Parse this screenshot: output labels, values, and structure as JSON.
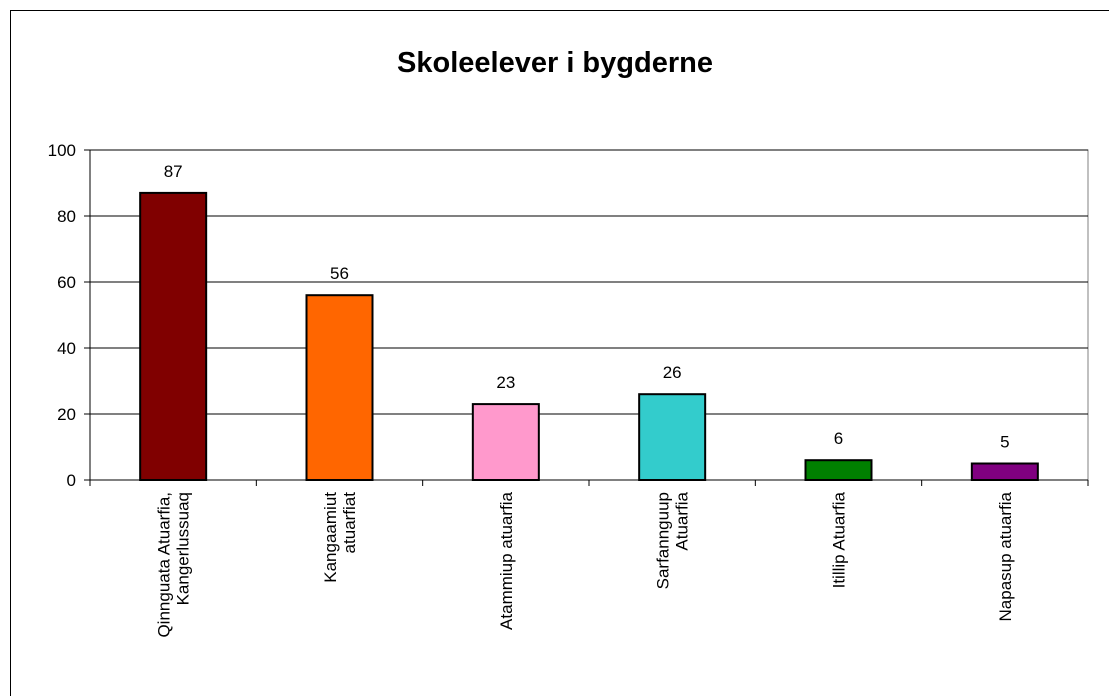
{
  "chart_data": {
    "type": "bar",
    "title": "Skoleelever i bygderne",
    "categories": [
      "Qinnguata Atuarfia,\nKangerlussuaq",
      "Kangaamiut\natuarfiat",
      "Atammiup atuarfia",
      "Sarfannguup\nAtuarfia",
      "Itillip Atuarfia",
      "Napasup atuarfia"
    ],
    "values": [
      87,
      56,
      23,
      26,
      6,
      5
    ],
    "colors": [
      "#800000",
      "#ff6600",
      "#ff99cc",
      "#33cccc",
      "#008000",
      "#800080"
    ],
    "ylim": [
      0,
      100
    ],
    "yticks": [
      0,
      20,
      40,
      60,
      80,
      100
    ],
    "grid": true
  }
}
